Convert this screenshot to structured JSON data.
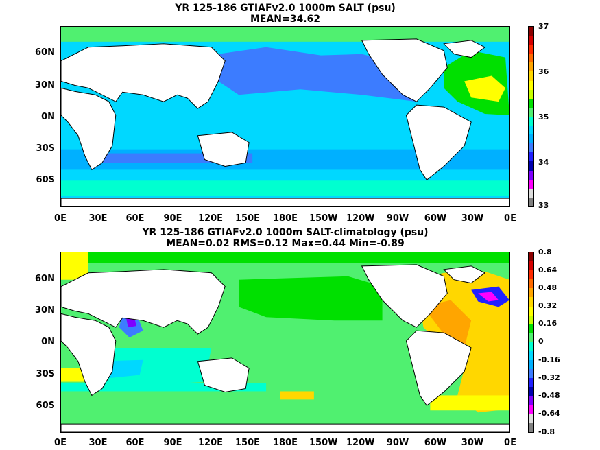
{
  "panels": [
    {
      "title_line1": "YR 125-186 GTIAFv2.0 1000m SALT (psu)",
      "title_line2": "MEAN=34.62",
      "colorbar_labels": [
        "37",
        "36",
        "35",
        "34",
        "33"
      ],
      "colorbar_colors": [
        "#8b0000",
        "#d40000",
        "#ff2a00",
        "#ff6a00",
        "#ffa500",
        "#ffd700",
        "#ffff00",
        "#c8ff00",
        "#00e000",
        "#50f070",
        "#00ffd0",
        "#00d8ff",
        "#00b0ff",
        "#3c7cff",
        "#2020ff",
        "#0000b0",
        "#7f00ff",
        "#ff00ff",
        "#dddddd",
        "#808080"
      ]
    },
    {
      "title_line1": "YR 125-186 GTIAFv2.0 1000m SALT-climatology (psu)",
      "title_line2": "MEAN=0.02   RMS=0.12   Max=0.44   Min=-0.89",
      "colorbar_labels": [
        "0.8",
        "0.64",
        "0.48",
        "0.32",
        "0.16",
        "0",
        "-0.16",
        "-0.32",
        "-0.48",
        "-0.64",
        "-0.8"
      ],
      "colorbar_colors": [
        "#8b0000",
        "#d40000",
        "#ff2a00",
        "#ff6a00",
        "#ffa500",
        "#ffd700",
        "#ffff00",
        "#c8ff00",
        "#00e000",
        "#50f070",
        "#00ffd0",
        "#00d8ff",
        "#00b0ff",
        "#3c7cff",
        "#2020ff",
        "#0000b0",
        "#7f00ff",
        "#ff00ff",
        "#dddddd",
        "#808080"
      ]
    }
  ],
  "lat_labels": [
    "60N",
    "30N",
    "0N",
    "30S",
    "60S"
  ],
  "lon_labels": [
    "0E",
    "30E",
    "60E",
    "90E",
    "120E",
    "150E",
    "180E",
    "150W",
    "120W",
    "90W",
    "60W",
    "30W",
    "0E"
  ]
}
